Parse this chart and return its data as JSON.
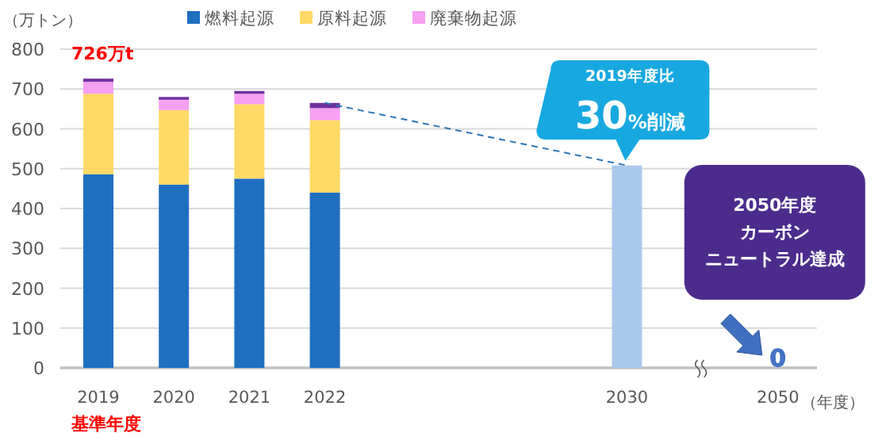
{
  "chart_data": {
    "type": "bar",
    "stacked": true,
    "ylabel": "（万トン）",
    "xlabel": "（年度）",
    "categories": [
      "2019",
      "2020",
      "2021",
      "2022",
      null,
      null,
      null,
      "2030",
      null,
      "2050"
    ],
    "series": [
      {
        "name": "燃料起源",
        "color": "#1f6fc0",
        "values": [
          486,
          460,
          475,
          440,
          null,
          null,
          null,
          null,
          null,
          null
        ]
      },
      {
        "name": "原料起源",
        "color": "#ffd966",
        "values": [
          202,
          187,
          187,
          182,
          null,
          null,
          null,
          null,
          null,
          null
        ]
      },
      {
        "name": "廃棄物起源",
        "color": "#f5a0f0",
        "values": [
          30,
          26,
          26,
          30,
          null,
          null,
          null,
          null,
          null,
          null
        ]
      },
      {
        "color": "#7030a0",
        "values": [
          8,
          7,
          7,
          13,
          null,
          null,
          null,
          null,
          null,
          null
        ]
      },
      {
        "color": "#a9c8ec",
        "values": [
          null,
          null,
          null,
          null,
          null,
          null,
          null,
          508,
          null,
          0
        ],
        "value_labels": [
          null,
          null,
          null,
          null,
          null,
          null,
          null,
          null,
          null,
          "0"
        ]
      },
      {
        "type": "line",
        "color": "#2e75b6",
        "line_style": "dashed",
        "values": [
          null,
          null,
          null,
          665,
          null,
          null,
          null,
          508,
          null,
          null
        ]
      }
    ],
    "ylim": [
      0,
      800
    ],
    "yticks": [
      0,
      100,
      200,
      300,
      400,
      500,
      600,
      700,
      800
    ],
    "grid": "y",
    "legend": "top",
    "annotations": [
      {
        "text": "726万t",
        "x": "2019",
        "y": 726
      },
      "基準年度",
      "2019年度比",
      {
        "text": "30%削減",
        "x": "2030",
        "y": 508
      },
      "2050年度",
      "カーボン",
      "ニュートラル達成"
    ]
  }
}
